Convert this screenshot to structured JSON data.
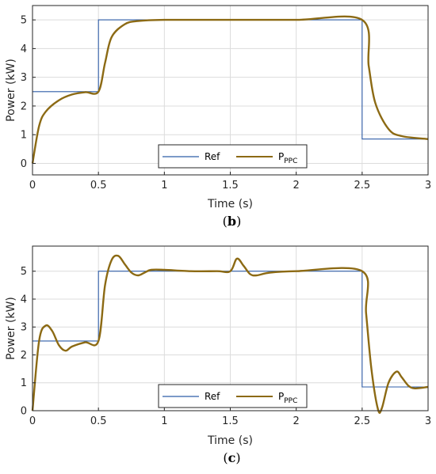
{
  "colors": {
    "ref": "#2f5da8",
    "ppc": "#8c6a14",
    "grid": "#dcdcdc",
    "axis": "#262626"
  },
  "chart_data": [
    {
      "panel": "(b)",
      "caption_letter": "b",
      "type": "line",
      "xlabel": "Time (s)",
      "ylabel": "Power (kW)",
      "xlim": [
        0,
        3
      ],
      "ylim": [
        -0.4,
        5.5
      ],
      "xticks": [
        0,
        0.5,
        1,
        1.5,
        2,
        2.5,
        3
      ],
      "xtick_labels": [
        "0",
        "0.5",
        "1",
        "1.5",
        "2",
        "2.5",
        "3"
      ],
      "yticks": [
        0,
        1,
        2,
        3,
        4,
        5
      ],
      "ytick_labels": [
        "0",
        "1",
        "2",
        "3",
        "4",
        "5"
      ],
      "grid": true,
      "legend_position": "bottom-center",
      "series": [
        {
          "name": "Ref",
          "legend_main": "Ref",
          "legend_sub": "",
          "color": "#2f5da8",
          "x": [
            0,
            0.5,
            0.5,
            2.5,
            2.5,
            3
          ],
          "y": [
            2.5,
            2.5,
            5,
            5,
            0.85,
            0.85
          ]
        },
        {
          "name": "P_PPC",
          "legend_main": "P",
          "legend_sub": "PPC",
          "color": "#8c6a14",
          "x": [
            0,
            0.05,
            0.1,
            0.2,
            0.3,
            0.4,
            0.5,
            0.55,
            0.6,
            0.7,
            0.8,
            1.0,
            1.5,
            2.0,
            2.5,
            2.55,
            2.6,
            2.7,
            2.8,
            3.0
          ],
          "y": [
            0,
            1.3,
            1.8,
            2.2,
            2.4,
            2.48,
            2.5,
            3.5,
            4.4,
            4.85,
            4.96,
            5.0,
            5.0,
            5.0,
            5.0,
            3.4,
            2.1,
            1.2,
            0.95,
            0.85
          ]
        }
      ]
    },
    {
      "panel": "(c)",
      "caption_letter": "c",
      "type": "line",
      "xlabel": "Time (s)",
      "ylabel": "Power (kW)",
      "xlim": [
        0,
        3
      ],
      "ylim": [
        0,
        5.9
      ],
      "xticks": [
        0,
        0.5,
        1,
        1.5,
        2,
        2.5,
        3
      ],
      "xtick_labels": [
        "0",
        "0.5",
        "1",
        "1.5",
        "2",
        "2.5",
        "3"
      ],
      "yticks": [
        0,
        1,
        2,
        3,
        4,
        5
      ],
      "ytick_labels": [
        "0",
        "1",
        "2",
        "3",
        "4",
        "5"
      ],
      "grid": true,
      "legend_position": "bottom-center",
      "series": [
        {
          "name": "Ref",
          "legend_main": "Ref",
          "legend_sub": "",
          "color": "#2f5da8",
          "x": [
            0,
            0.5,
            0.5,
            2.5,
            2.5,
            3
          ],
          "y": [
            2.5,
            2.5,
            5,
            5,
            0.85,
            0.85
          ]
        },
        {
          "name": "P_PPC",
          "legend_main": "P",
          "legend_sub": "PPC",
          "color": "#8c6a14",
          "x": [
            0,
            0.05,
            0.1,
            0.15,
            0.2,
            0.25,
            0.3,
            0.4,
            0.5,
            0.55,
            0.6,
            0.65,
            0.7,
            0.75,
            0.8,
            0.85,
            0.9,
            1.0,
            1.2,
            1.4,
            1.5,
            1.55,
            1.6,
            1.65,
            1.7,
            1.8,
            2.0,
            2.5,
            2.53,
            2.57,
            2.62,
            2.65,
            2.7,
            2.76,
            2.8,
            2.85,
            2.9,
            3.0
          ],
          "y": [
            0,
            2.5,
            3.05,
            2.85,
            2.35,
            2.15,
            2.3,
            2.45,
            2.5,
            4.5,
            5.4,
            5.55,
            5.25,
            4.95,
            4.85,
            4.95,
            5.05,
            5.05,
            5.0,
            5.0,
            5.0,
            5.45,
            5.2,
            4.9,
            4.85,
            4.95,
            5.0,
            5.0,
            3.5,
            1.5,
            0.05,
            0.1,
            1.0,
            1.4,
            1.2,
            0.9,
            0.8,
            0.85
          ]
        }
      ]
    }
  ]
}
